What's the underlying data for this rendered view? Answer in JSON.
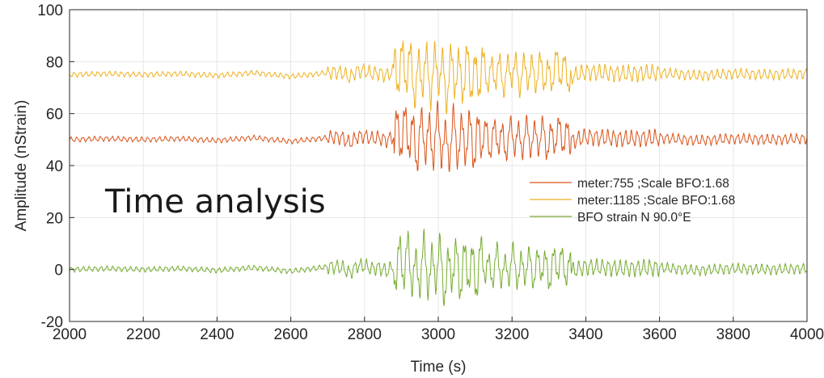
{
  "chart_data": {
    "type": "line",
    "title": "",
    "overlay_text": "Time analysis",
    "xlabel": "Time (s)",
    "ylabel": "Amplitude (nStrain)",
    "xlim": [
      2000,
      4000
    ],
    "ylim": [
      -20,
      100
    ],
    "xticks": [
      2000,
      2200,
      2400,
      2600,
      2800,
      3000,
      3200,
      3400,
      3600,
      3800,
      4000
    ],
    "yticks": [
      -20,
      0,
      20,
      40,
      60,
      80,
      100
    ],
    "xtick_labels": [
      "2000",
      "2200",
      "2400",
      "2600",
      "2800",
      "3000",
      "3200",
      "3400",
      "3600",
      "3800",
      "4000"
    ],
    "ytick_labels": [
      "-20",
      "0",
      "20",
      "40",
      "60",
      "80",
      "100"
    ],
    "grid": true,
    "legend_position": "right",
    "series": [
      {
        "name": "meter:755 ;Scale BFO:1.68",
        "color": "#D95319",
        "offset": 50,
        "x": [
          2000,
          2100,
          2200,
          2300,
          2400,
          2500,
          2600,
          2700,
          2720,
          2740,
          2760,
          2780,
          2800,
          2820,
          2840,
          2860,
          2880,
          2900,
          2920,
          2940,
          2960,
          2980,
          3000,
          3020,
          3040,
          3060,
          3080,
          3100,
          3120,
          3140,
          3160,
          3180,
          3200,
          3220,
          3240,
          3260,
          3280,
          3300,
          3320,
          3340,
          3360,
          3400,
          3500,
          3600,
          3700,
          3800,
          3900,
          4000
        ],
        "values": [
          50,
          51,
          50,
          51,
          49,
          52,
          48,
          52,
          53,
          52,
          46,
          53,
          54,
          51,
          52,
          49,
          54,
          58,
          60,
          41,
          59,
          44,
          61,
          38,
          57,
          46,
          55,
          44,
          58,
          47,
          56,
          44,
          57,
          47,
          55,
          49,
          56,
          45,
          57,
          54,
          48,
          53,
          51,
          52,
          49,
          51,
          50,
          51
        ]
      },
      {
        "name": "meter:1185 ;Scale BFO:1.68",
        "color": "#EDB120",
        "offset": 75,
        "x": [
          2000,
          2100,
          2200,
          2300,
          2400,
          2500,
          2600,
          2700,
          2720,
          2740,
          2760,
          2780,
          2800,
          2820,
          2840,
          2860,
          2880,
          2900,
          2920,
          2940,
          2960,
          2980,
          3000,
          3020,
          3040,
          3060,
          3080,
          3100,
          3120,
          3140,
          3160,
          3180,
          3200,
          3220,
          3240,
          3260,
          3280,
          3300,
          3320,
          3340,
          3360,
          3400,
          3500,
          3600,
          3700,
          3800,
          3900,
          4000
        ],
        "values": [
          75,
          76,
          75,
          76,
          74,
          77,
          73,
          77,
          78,
          77,
          72,
          79,
          79,
          76,
          77,
          74,
          79,
          84,
          85,
          65,
          84,
          69,
          86,
          62,
          83,
          70,
          81,
          68,
          84,
          72,
          81,
          70,
          83,
          72,
          80,
          74,
          81,
          70,
          85,
          79,
          73,
          78,
          76,
          77,
          74,
          76,
          75,
          76
        ]
      },
      {
        "name": "BFO strain N 90.0°E",
        "color": "#77AC30",
        "offset": 0,
        "x": [
          2000,
          2100,
          2200,
          2300,
          2400,
          2500,
          2600,
          2700,
          2720,
          2740,
          2760,
          2780,
          2800,
          2820,
          2840,
          2860,
          2880,
          2900,
          2920,
          2940,
          2960,
          2980,
          3000,
          3020,
          3040,
          3060,
          3080,
          3100,
          3120,
          3140,
          3160,
          3180,
          3200,
          3220,
          3240,
          3260,
          3280,
          3300,
          3320,
          3340,
          3360,
          3400,
          3500,
          3600,
          3700,
          3800,
          3900,
          4000
        ],
        "values": [
          0,
          1,
          0,
          1,
          -1,
          2,
          -2,
          3,
          3,
          2,
          -4,
          4,
          4,
          1,
          2,
          -2,
          4,
          8,
          11,
          -10,
          12,
          -7,
          13,
          -15,
          10,
          -6,
          8,
          -7,
          11,
          -5,
          9,
          -6,
          10,
          -4,
          7,
          -2,
          8,
          -5,
          9,
          4,
          -2,
          3,
          1,
          2,
          -1,
          1,
          0,
          1
        ]
      }
    ]
  }
}
